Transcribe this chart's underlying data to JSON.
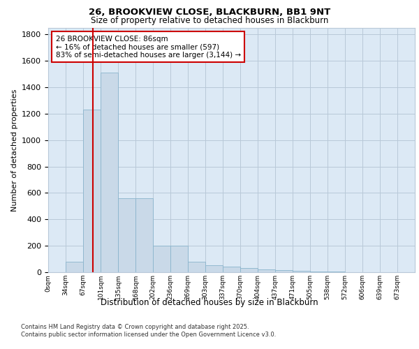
{
  "title_line1": "26, BROOKVIEW CLOSE, BLACKBURN, BB1 9NT",
  "title_line2": "Size of property relative to detached houses in Blackburn",
  "xlabel": "Distribution of detached houses by size in Blackburn",
  "ylabel": "Number of detached properties",
  "categories": [
    "0sqm",
    "34sqm",
    "67sqm",
    "101sqm",
    "135sqm",
    "168sqm",
    "202sqm",
    "236sqm",
    "269sqm",
    "303sqm",
    "337sqm",
    "370sqm",
    "404sqm",
    "437sqm",
    "471sqm",
    "505sqm",
    "538sqm",
    "572sqm",
    "606sqm",
    "639sqm",
    "673sqm"
  ],
  "values": [
    0,
    80,
    1230,
    1510,
    560,
    560,
    200,
    200,
    80,
    55,
    40,
    30,
    20,
    15,
    10,
    5,
    3,
    2,
    1,
    1,
    0
  ],
  "bar_color": "#c9d9e8",
  "bar_edge_color": "#8ab4cc",
  "property_line_color": "#cc0000",
  "annotation_text": "26 BROOKVIEW CLOSE: 86sqm\n← 16% of detached houses are smaller (597)\n83% of semi-detached houses are larger (3,144) →",
  "annotation_box_color": "#ffffff",
  "annotation_box_edge": "#cc0000",
  "ylim": [
    0,
    1850
  ],
  "yticks": [
    0,
    200,
    400,
    600,
    800,
    1000,
    1200,
    1400,
    1600,
    1800
  ],
  "footer_line1": "Contains HM Land Registry data © Crown copyright and database right 2025.",
  "footer_line2": "Contains public sector information licensed under the Open Government Licence v3.0.",
  "bar_background": "#dce9f5",
  "fig_background": "#ffffff",
  "grid_color": "#b8c8d8"
}
